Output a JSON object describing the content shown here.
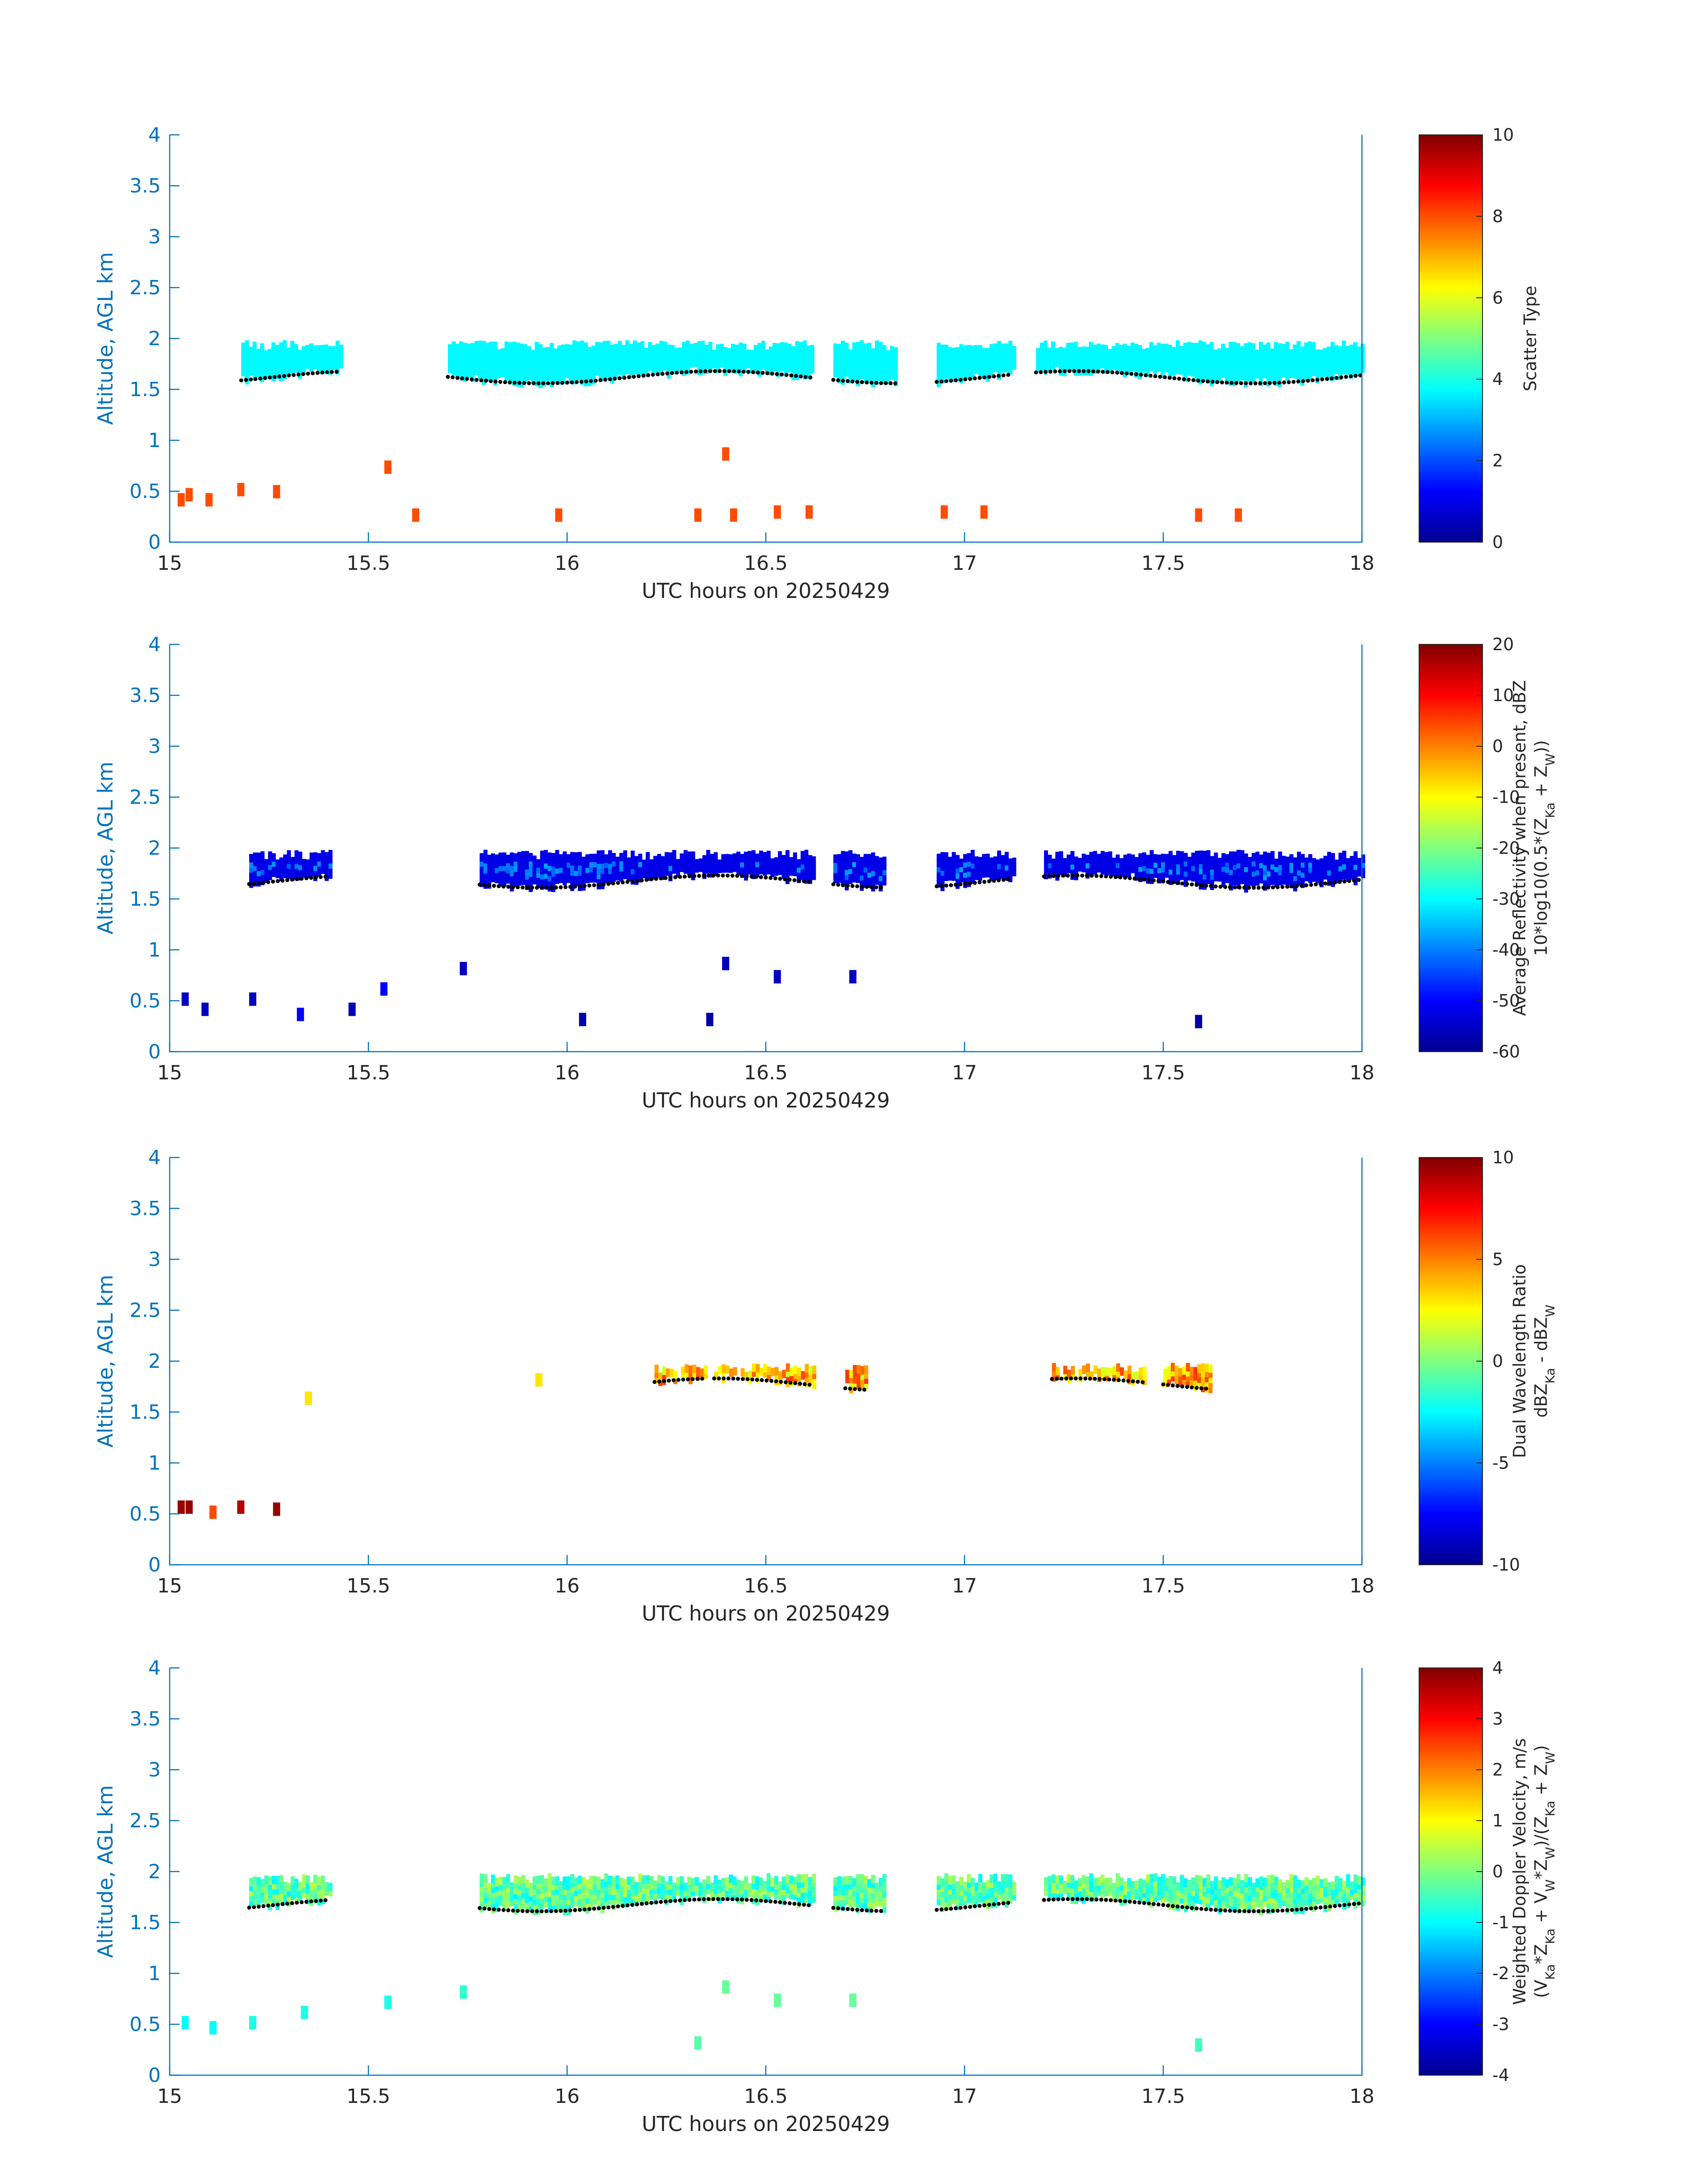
{
  "chart_data": [
    {
      "type": "heatmap",
      "xlabel": "UTC hours on 20250429",
      "ylabel": "Altitude, AGL km",
      "xlim": [
        15,
        18
      ],
      "ylim": [
        0,
        4
      ],
      "xticks": [
        "15",
        "15.5",
        "16",
        "16.5",
        "17",
        "17.5",
        "18"
      ],
      "yticks": [
        "0",
        "0.5",
        "1",
        "1.5",
        "2",
        "2.5",
        "3",
        "3.5",
        "4"
      ],
      "colorbar": {
        "label_lines": [
          "Scatter Type"
        ],
        "clim": [
          0,
          10
        ],
        "ticks": [
          "0",
          "2",
          "4",
          "6",
          "8",
          "10"
        ],
        "colormap": "jet"
      },
      "cloud_layer": {
        "value": 3.7,
        "base_km": 1.5,
        "top_km": 1.9,
        "segments": [
          [
            15.18,
            15.43
          ],
          [
            15.7,
            16.62
          ],
          [
            16.67,
            16.83
          ],
          [
            16.93,
            17.12
          ],
          [
            17.18,
            18.0
          ]
        ]
      },
      "scatter_cells": [
        {
          "t": 15.02,
          "z": 0.35,
          "v": 8.0
        },
        {
          "t": 15.04,
          "z": 0.4,
          "v": 8.0
        },
        {
          "t": 15.09,
          "z": 0.35,
          "v": 8.0
        },
        {
          "t": 15.17,
          "z": 0.45,
          "v": 8.0
        },
        {
          "t": 15.26,
          "z": 0.43,
          "v": 8.0
        },
        {
          "t": 15.54,
          "z": 0.67,
          "v": 8.0
        },
        {
          "t": 15.61,
          "z": 0.2,
          "v": 8.0
        },
        {
          "t": 15.97,
          "z": 0.2,
          "v": 8.0
        },
        {
          "t": 16.32,
          "z": 0.2,
          "v": 8.0
        },
        {
          "t": 16.39,
          "z": 0.8,
          "v": 8.0
        },
        {
          "t": 16.41,
          "z": 0.2,
          "v": 8.0
        },
        {
          "t": 16.52,
          "z": 0.23,
          "v": 8.0
        },
        {
          "t": 16.6,
          "z": 0.23,
          "v": 8.0
        },
        {
          "t": 16.94,
          "z": 0.23,
          "v": 8.0
        },
        {
          "t": 17.04,
          "z": 0.23,
          "v": 8.0
        },
        {
          "t": 17.58,
          "z": 0.2,
          "v": 8.0
        },
        {
          "t": 17.68,
          "z": 0.2,
          "v": 8.0
        }
      ]
    },
    {
      "type": "heatmap",
      "xlabel": "UTC hours on 20250429",
      "ylabel": "Altitude, AGL km",
      "xlim": [
        15,
        18
      ],
      "ylim": [
        0,
        4
      ],
      "xticks": [
        "15",
        "15.5",
        "16",
        "16.5",
        "17",
        "17.5",
        "18"
      ],
      "yticks": [
        "0",
        "0.5",
        "1",
        "1.5",
        "2",
        "2.5",
        "3",
        "3.5",
        "4"
      ],
      "colorbar": {
        "label_lines": [
          "Average Reflectivity when present, dBZ",
          "10*log10(0.5*(Z",
          "Ka",
          " + Z",
          "W",
          "))"
        ],
        "clim": [
          -60,
          20
        ],
        "ticks": [
          "-60",
          "-50",
          "-40",
          "-30",
          "-20",
          "-10",
          "0",
          "10",
          "20"
        ],
        "colormap": "jet"
      },
      "cloud_layer": {
        "value": -52,
        "core_value": -40,
        "base_km": 1.55,
        "top_km": 1.9,
        "segments": [
          [
            15.2,
            15.4
          ],
          [
            15.78,
            16.62
          ],
          [
            16.67,
            16.8
          ],
          [
            16.93,
            17.12
          ],
          [
            17.2,
            18.0
          ]
        ]
      },
      "scatter_cells": [
        {
          "t": 15.03,
          "z": 0.45,
          "v": -55
        },
        {
          "t": 15.08,
          "z": 0.35,
          "v": -55
        },
        {
          "t": 15.2,
          "z": 0.45,
          "v": -55
        },
        {
          "t": 15.32,
          "z": 0.3,
          "v": -50
        },
        {
          "t": 15.45,
          "z": 0.35,
          "v": -55
        },
        {
          "t": 15.53,
          "z": 0.55,
          "v": -50
        },
        {
          "t": 15.73,
          "z": 0.75,
          "v": -55
        },
        {
          "t": 16.03,
          "z": 0.25,
          "v": -57
        },
        {
          "t": 16.39,
          "z": 0.8,
          "v": -55
        },
        {
          "t": 16.52,
          "z": 0.67,
          "v": -55
        },
        {
          "t": 16.71,
          "z": 0.67,
          "v": -55
        },
        {
          "t": 16.35,
          "z": 0.25,
          "v": -57
        },
        {
          "t": 17.58,
          "z": 0.23,
          "v": -57
        }
      ]
    },
    {
      "type": "heatmap",
      "xlabel": "UTC hours on 20250429",
      "ylabel": "Altitude, AGL km",
      "xlim": [
        15,
        18
      ],
      "ylim": [
        0,
        4
      ],
      "xticks": [
        "15",
        "15.5",
        "16",
        "16.5",
        "17",
        "17.5",
        "18"
      ],
      "yticks": [
        "0",
        "0.5",
        "1",
        "1.5",
        "2",
        "2.5",
        "3",
        "3.5",
        "4"
      ],
      "colorbar": {
        "label_lines": [
          "Dual Wavelength Ratio",
          "dBZ",
          "Ka",
          " - dBZ",
          "W"
        ],
        "clim": [
          -10,
          10
        ],
        "ticks": [
          "-10",
          "-5",
          "0",
          "5",
          "10"
        ],
        "colormap": "jet"
      },
      "cloud_layer": {
        "value": 3.0,
        "base_km": 1.65,
        "top_km": 1.9,
        "segments": [
          [
            16.22,
            16.35
          ],
          [
            16.37,
            16.62
          ],
          [
            16.7,
            16.75
          ],
          [
            17.22,
            17.45
          ],
          [
            17.5,
            17.62
          ]
        ]
      },
      "scatter_cells": [
        {
          "t": 15.02,
          "z": 0.5,
          "v": 9.5
        },
        {
          "t": 15.04,
          "z": 0.5,
          "v": 9.5
        },
        {
          "t": 15.1,
          "z": 0.45,
          "v": 6.0
        },
        {
          "t": 15.17,
          "z": 0.5,
          "v": 9.0
        },
        {
          "t": 15.26,
          "z": 0.48,
          "v": 9.5
        },
        {
          "t": 15.34,
          "z": 1.57,
          "v": 3.0
        },
        {
          "t": 15.92,
          "z": 1.75,
          "v": 3.0
        }
      ]
    },
    {
      "type": "heatmap",
      "xlabel": "UTC hours on 20250429",
      "ylabel": "Altitude, AGL km",
      "xlim": [
        15,
        18
      ],
      "ylim": [
        0,
        4
      ],
      "xticks": [
        "15",
        "15.5",
        "16",
        "16.5",
        "17",
        "17.5",
        "18"
      ],
      "yticks": [
        "0",
        "0.5",
        "1",
        "1.5",
        "2",
        "2.5",
        "3",
        "3.5",
        "4"
      ],
      "colorbar": {
        "label_lines": [
          "Weighted Doppler Velocity, m/s",
          "(V",
          "Ka",
          "*Z",
          "Ka",
          " + V",
          "W",
          "*Z",
          "W",
          ")/(Z",
          "Ka",
          " + Z",
          "W",
          ")"
        ],
        "clim": [
          -4,
          4
        ],
        "ticks": [
          "-4",
          "-3",
          "-2",
          "-1",
          "0",
          "1",
          "2",
          "3",
          "4"
        ],
        "colormap": "jet"
      },
      "cloud_layer": {
        "value": -0.3,
        "base_km": 1.55,
        "top_km": 1.9,
        "segments": [
          [
            15.2,
            15.4
          ],
          [
            15.78,
            16.62
          ],
          [
            16.67,
            16.8
          ],
          [
            16.93,
            17.12
          ],
          [
            17.2,
            18.0
          ]
        ]
      },
      "scatter_cells": [
        {
          "t": 15.03,
          "z": 0.45,
          "v": -1.0
        },
        {
          "t": 15.1,
          "z": 0.4,
          "v": -1.0
        },
        {
          "t": 15.2,
          "z": 0.45,
          "v": -0.8
        },
        {
          "t": 15.33,
          "z": 0.55,
          "v": -0.8
        },
        {
          "t": 15.54,
          "z": 0.65,
          "v": -0.8
        },
        {
          "t": 15.73,
          "z": 0.75,
          "v": -0.6
        },
        {
          "t": 16.39,
          "z": 0.8,
          "v": -0.2
        },
        {
          "t": 16.52,
          "z": 0.67,
          "v": -0.2
        },
        {
          "t": 16.71,
          "z": 0.67,
          "v": -0.2
        },
        {
          "t": 16.32,
          "z": 0.25,
          "v": -0.3
        },
        {
          "t": 17.58,
          "z": 0.23,
          "v": -0.5
        }
      ]
    }
  ],
  "colors": {
    "axis": "#0072bd",
    "text": "#262626",
    "cloud_base_dots": "#000000"
  }
}
